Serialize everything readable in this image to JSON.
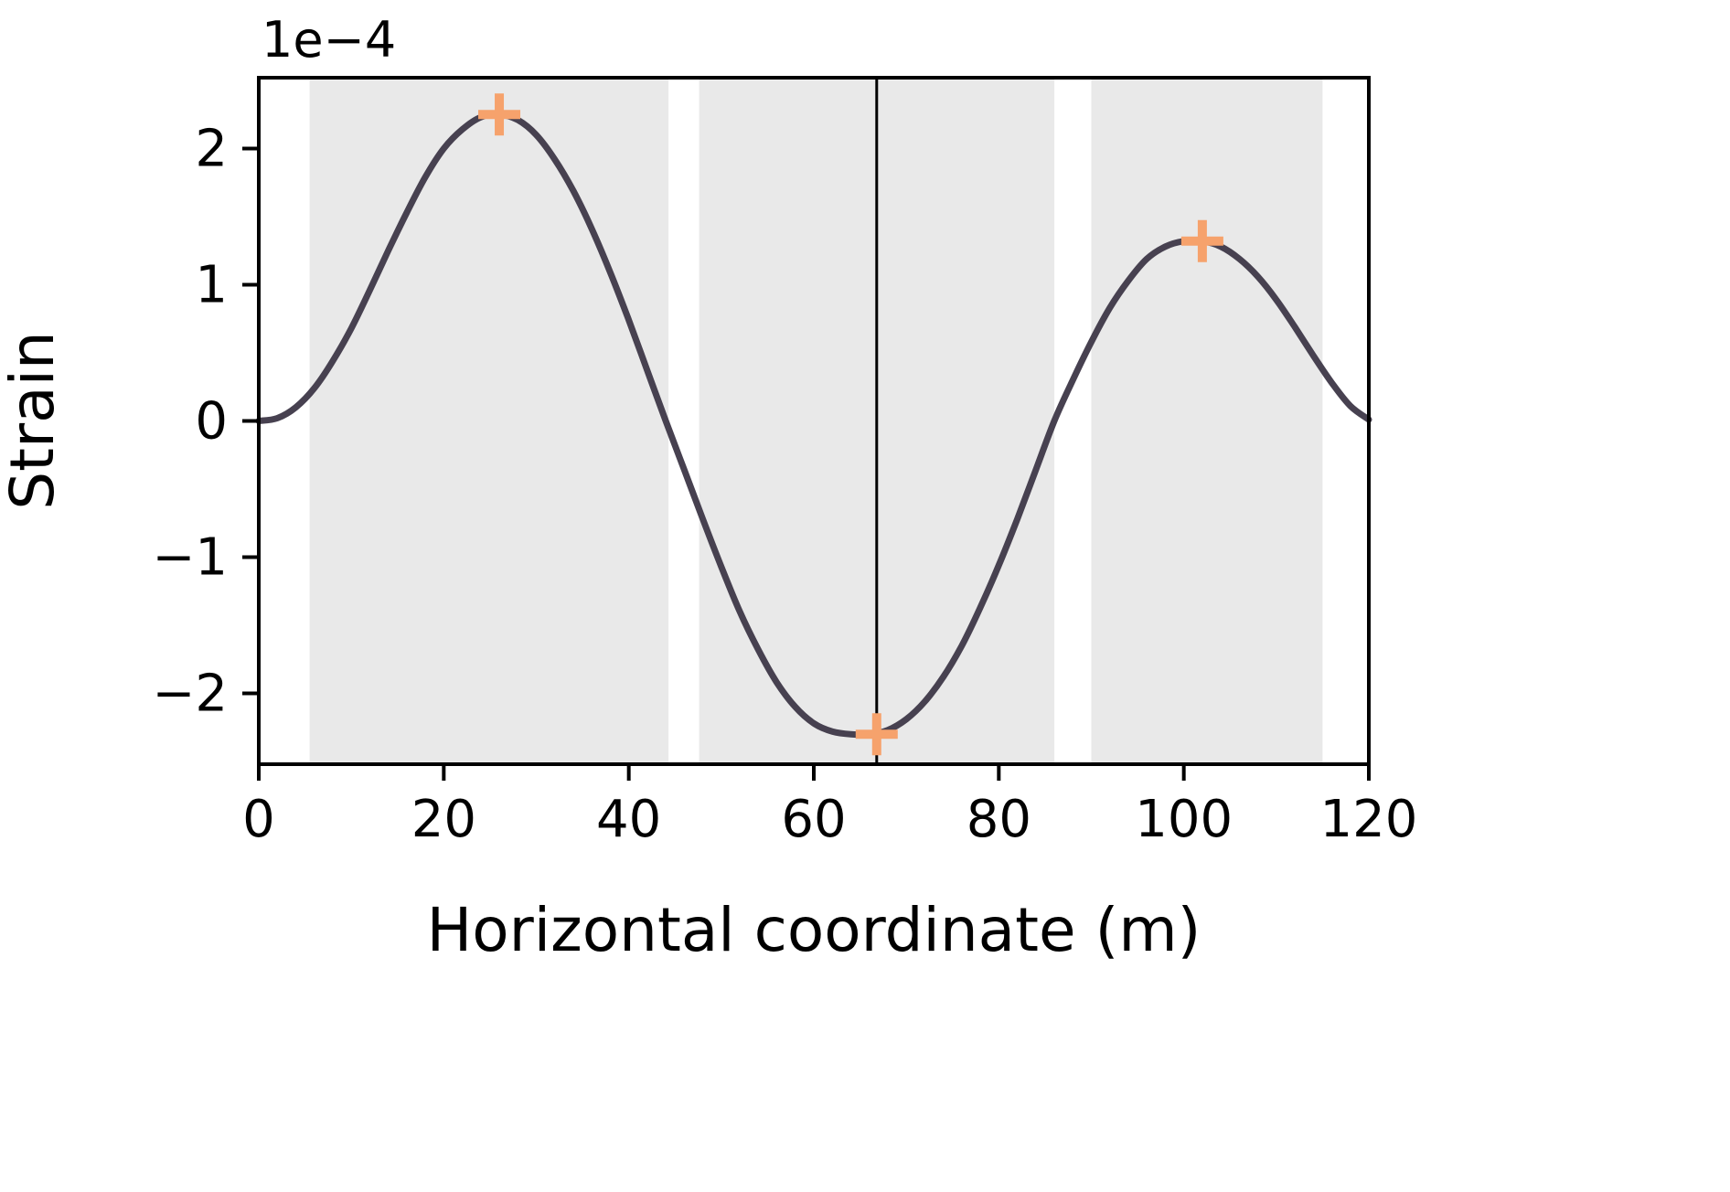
{
  "figure": {
    "background": "#ffffff"
  },
  "chart_data": {
    "type": "line",
    "title": "",
    "xlabel": "Horizontal coordinate (m)",
    "ylabel": "Strain",
    "y_offset_label": "1e−4",
    "xlim": [
      0,
      120
    ],
    "ylim": [
      -2.52,
      2.52
    ],
    "x_ticks": [
      0,
      20,
      40,
      60,
      80,
      100,
      120
    ],
    "y_ticks": [
      2,
      1,
      0,
      -1,
      -2
    ],
    "y_units_multiplier": "1e-4",
    "grid": false,
    "legend": null,
    "shaded_bands": [
      [
        5.5,
        44.3
      ],
      [
        47.6,
        86.0
      ],
      [
        90.0,
        115.0
      ]
    ],
    "vertical_line_x": 66.8,
    "series": [
      {
        "name": "strain",
        "x": [
          0,
          2,
          4,
          6,
          8,
          10,
          12,
          14,
          16,
          18,
          20,
          22,
          24,
          26,
          28,
          30,
          32,
          34,
          36,
          38,
          40,
          42,
          44,
          46,
          48,
          50,
          52,
          54,
          56,
          58,
          60,
          62,
          64,
          66,
          68,
          70,
          72,
          74,
          76,
          78,
          80,
          82,
          84,
          86,
          88,
          90,
          92,
          94,
          96,
          98,
          100,
          102,
          104,
          106,
          108,
          110,
          112,
          114,
          116,
          118,
          120
        ],
        "y": [
          0.0,
          0.02,
          0.1,
          0.24,
          0.44,
          0.68,
          0.96,
          1.25,
          1.53,
          1.79,
          2.0,
          2.14,
          2.23,
          2.25,
          2.21,
          2.1,
          1.92,
          1.69,
          1.41,
          1.09,
          0.74,
          0.37,
          0.0,
          -0.36,
          -0.72,
          -1.07,
          -1.4,
          -1.68,
          -1.92,
          -2.1,
          -2.22,
          -2.28,
          -2.3,
          -2.3,
          -2.27,
          -2.19,
          -2.06,
          -1.88,
          -1.65,
          -1.37,
          -1.06,
          -0.72,
          -0.36,
          0.0,
          0.3,
          0.58,
          0.83,
          1.03,
          1.19,
          1.28,
          1.32,
          1.32,
          1.28,
          1.19,
          1.06,
          0.89,
          0.69,
          0.48,
          0.28,
          0.11,
          0.01
        ]
      }
    ],
    "markers": [
      {
        "x": 26,
        "y": 2.25
      },
      {
        "x": 66.8,
        "y": -2.3
      },
      {
        "x": 102,
        "y": 1.32
      }
    ],
    "colors": {
      "line": "#474150",
      "band": "#e9e9e9",
      "marker": "#f6a26c",
      "axis": "#000000"
    }
  }
}
